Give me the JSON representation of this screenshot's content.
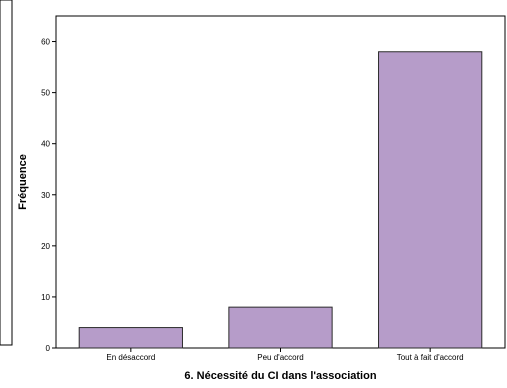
{
  "chart_data": {
    "type": "bar",
    "categories": [
      "En désaccord",
      "Peu d'accord",
      "Tout à fait d'accord"
    ],
    "values": [
      4,
      8,
      58
    ],
    "xlabel": "6. Nécessité du CI dans l'association",
    "ylabel": "Fréquence",
    "ylim": [
      0,
      65
    ],
    "yticks": [
      0,
      10,
      20,
      30,
      40,
      50,
      60
    ],
    "grid": false,
    "bar_color": "#b69cc9",
    "bar_stroke": "#2b2b2b",
    "axis_color": "#000000"
  }
}
